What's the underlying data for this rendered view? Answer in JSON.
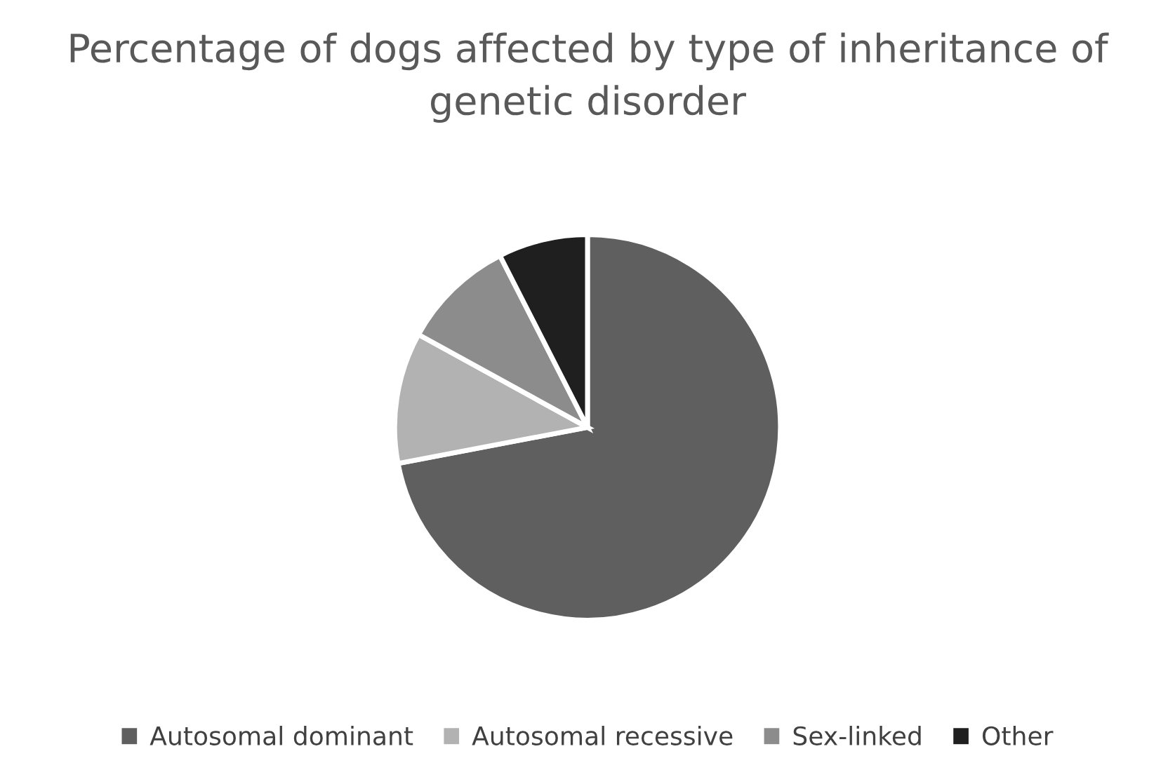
{
  "chart_data": {
    "type": "pie",
    "title": "Percentage of dogs affected by type of inheritance of genetic disorder",
    "categories": [
      "Autosomal dominant",
      "Autosomal recessive",
      "Sex-linked",
      "Other"
    ],
    "values": [
      72,
      11,
      9.5,
      7.5
    ],
    "colors": [
      "#5f5f5f",
      "#b2b2b2",
      "#8c8c8c",
      "#1f1f1f"
    ],
    "legend": "bottom"
  }
}
